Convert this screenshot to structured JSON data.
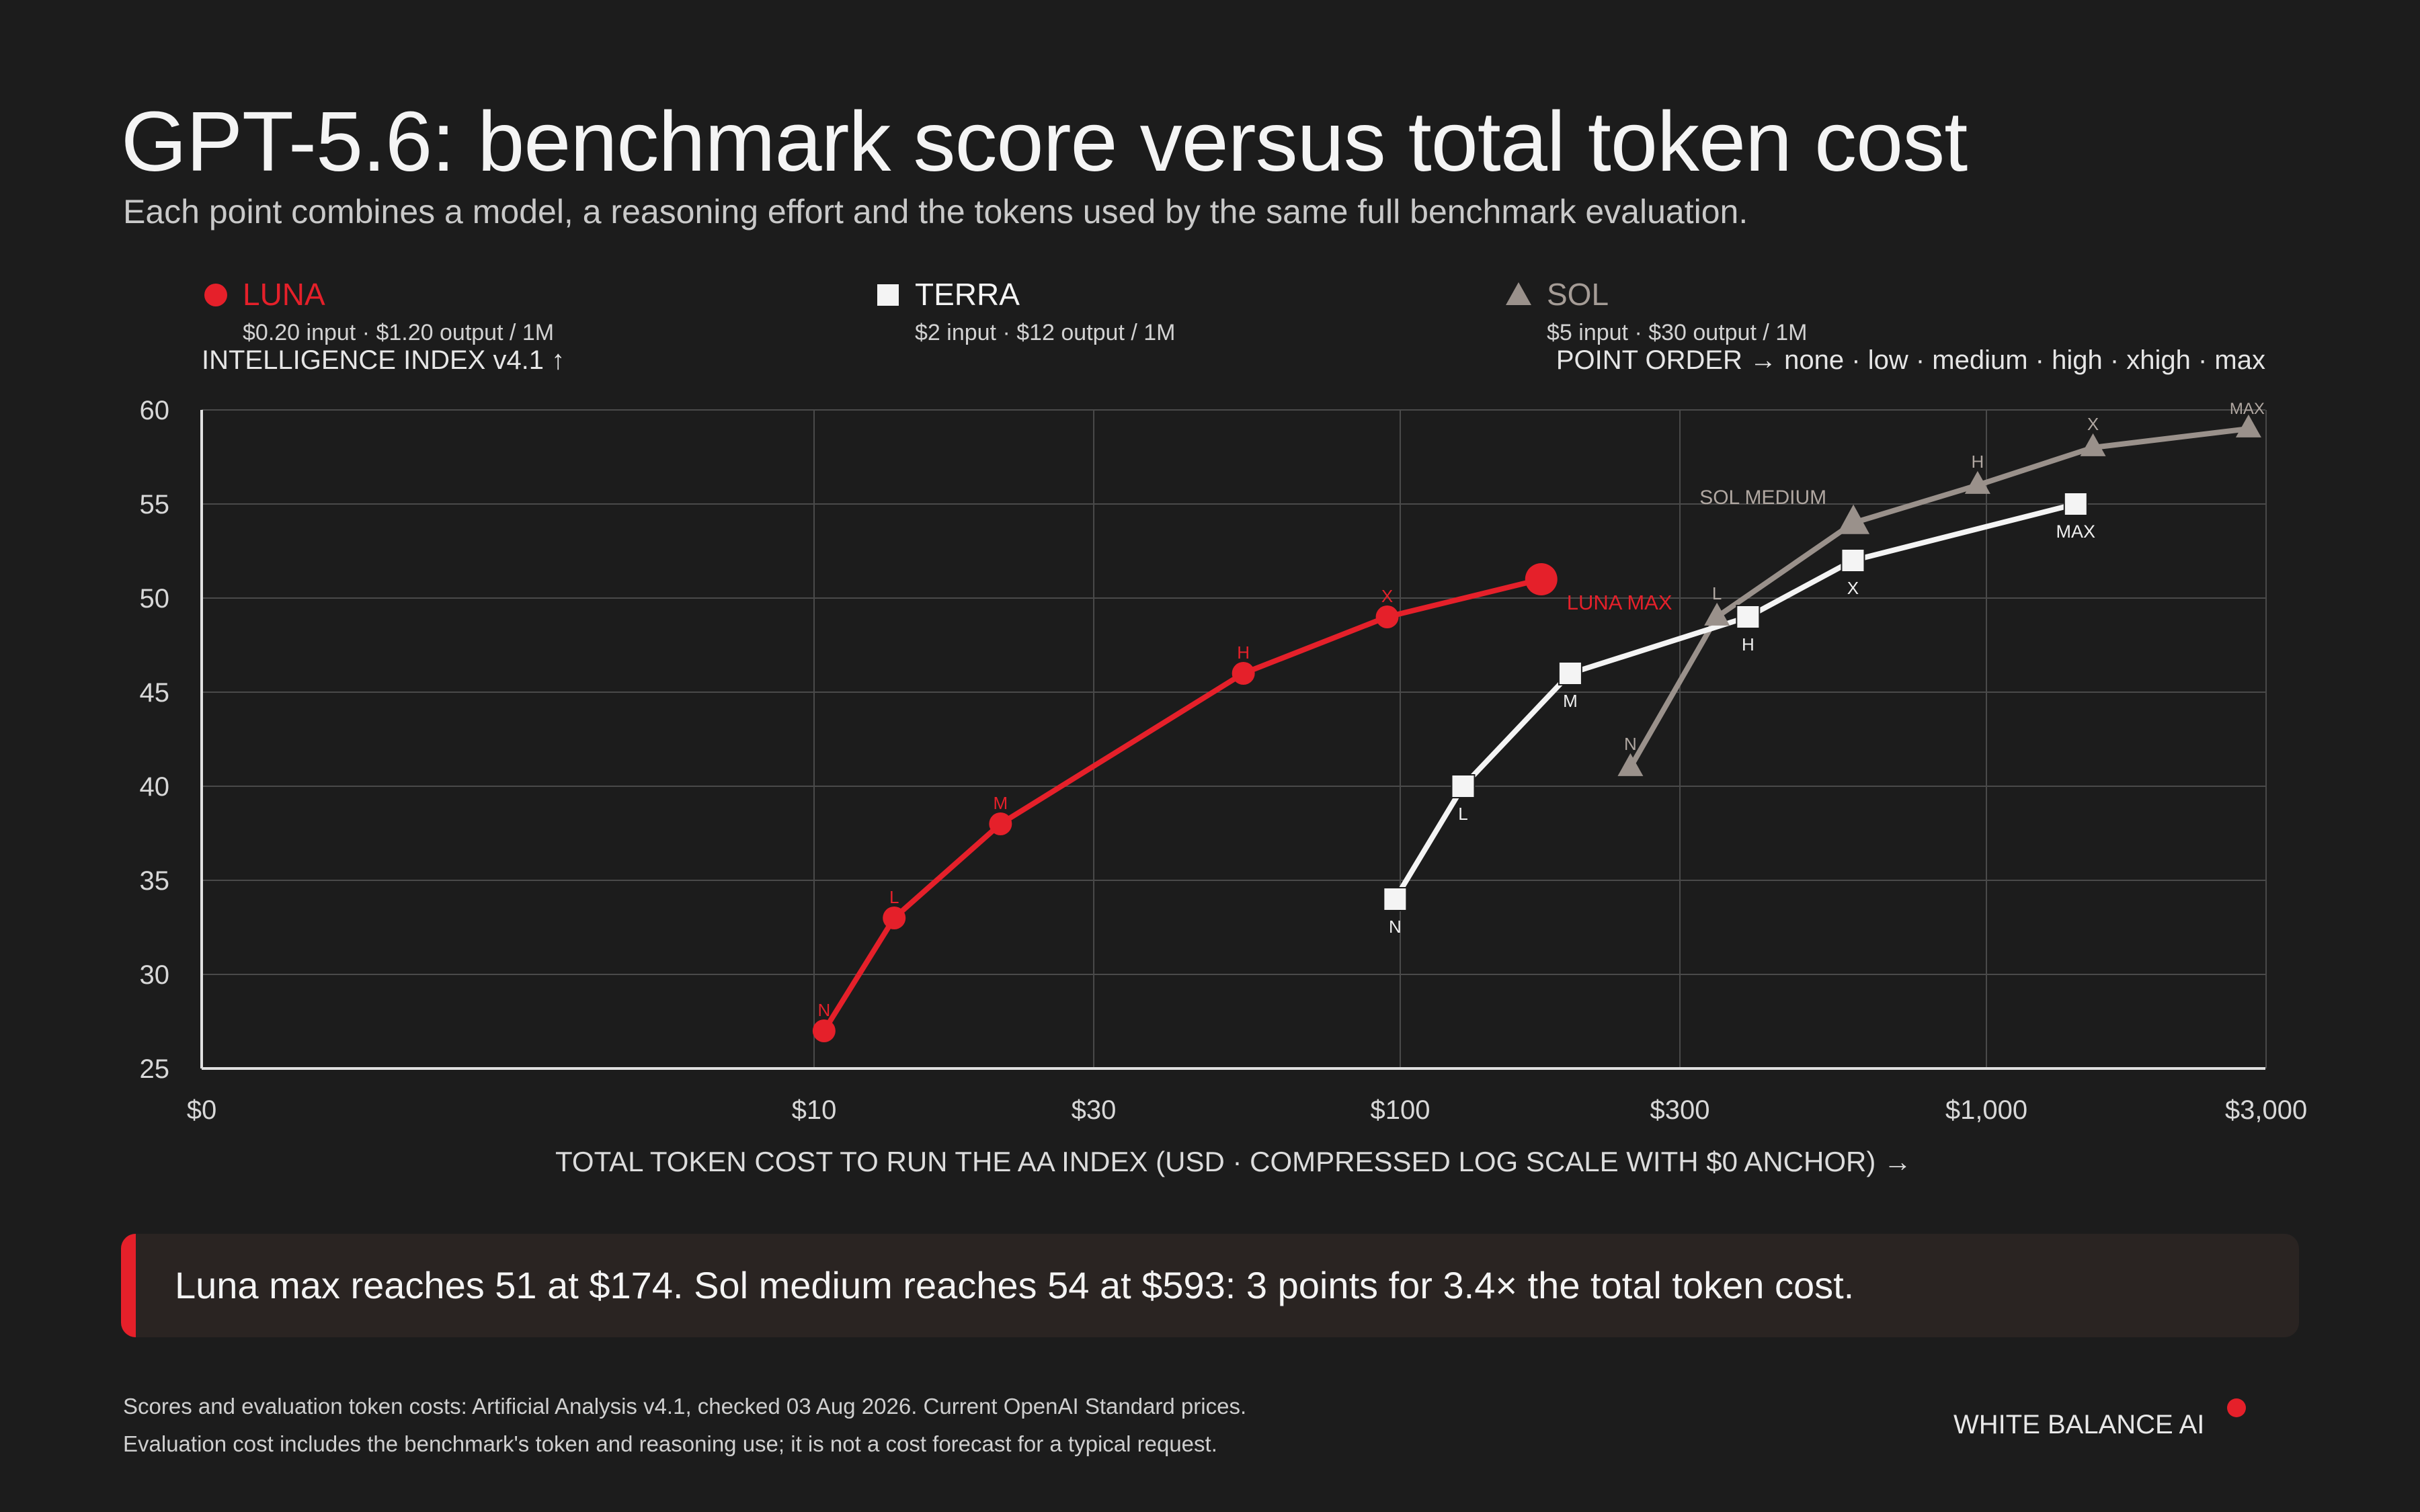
{
  "header": {
    "title": "GPT-5.6: benchmark score versus total token cost",
    "subtitle": "Each point combines a model, a reasoning effort and the tokens used by the same full benchmark evaluation."
  },
  "legend": [
    {
      "name": "LUNA",
      "price": "$0.20 input · $1.20 output / 1M",
      "marker": "circle",
      "color": "#e5202a"
    },
    {
      "name": "TERRA",
      "price": "$2 input · $12 output / 1M",
      "marker": "square",
      "color": "#f4f4f4"
    },
    {
      "name": "SOL",
      "price": "$5 input · $30 output / 1M",
      "marker": "triangle",
      "color": "#9a918b"
    }
  ],
  "axis_captions": {
    "y": "INTELLIGENCE INDEX v4.1 ↑",
    "order": "POINT ORDER → none · low · medium · high · xhigh · max"
  },
  "chart_data": {
    "type": "line",
    "title": "GPT-5.6: benchmark score versus total token cost",
    "subtitle": "Each point combines a model, a reasoning effort and the tokens used by the same full benchmark evaluation.",
    "xlabel": "TOTAL TOKEN COST TO RUN THE AA INDEX (USD · COMPRESSED LOG SCALE WITH $0 ANCHOR) →",
    "ylabel": "INTELLIGENCE INDEX v4.1 ↑",
    "x_scale": "log with $0 anchor",
    "xlim": [
      0,
      3000
    ],
    "ylim": [
      25,
      60
    ],
    "x_ticks": [
      {
        "value": 0,
        "label": "$0"
      },
      {
        "value": 10,
        "label": "$10"
      },
      {
        "value": 30,
        "label": "$30"
      },
      {
        "value": 100,
        "label": "$100"
      },
      {
        "value": 300,
        "label": "$300"
      },
      {
        "value": 1000,
        "label": "$1,000"
      },
      {
        "value": 3000,
        "label": "$3,000"
      }
    ],
    "y_ticks": [
      25,
      30,
      35,
      40,
      45,
      50,
      55,
      60
    ],
    "grid": true,
    "legend_position": "top",
    "series": [
      {
        "name": "LUNA",
        "color": "#e5202a",
        "marker": "circle",
        "points": [
          {
            "x": 10.4,
            "y": 27,
            "label": "N"
          },
          {
            "x": 13.7,
            "y": 33,
            "label": "L"
          },
          {
            "x": 20.8,
            "y": 38,
            "label": "M"
          },
          {
            "x": 54,
            "y": 46,
            "label": "H"
          },
          {
            "x": 95,
            "y": 49,
            "label": "X"
          },
          {
            "x": 174,
            "y": 51,
            "label": "LUNA MAX"
          }
        ]
      },
      {
        "name": "TERRA",
        "color": "#f4f4f4",
        "marker": "square",
        "points": [
          {
            "x": 98,
            "y": 34,
            "label": "N"
          },
          {
            "x": 128,
            "y": 40,
            "label": "L"
          },
          {
            "x": 195,
            "y": 46,
            "label": "M"
          },
          {
            "x": 392,
            "y": 49,
            "label": "H"
          },
          {
            "x": 592,
            "y": 52,
            "label": "X"
          },
          {
            "x": 1420,
            "y": 55,
            "label": "MAX"
          }
        ]
      },
      {
        "name": "SOL",
        "color": "#9a918b",
        "marker": "triangle",
        "points": [
          {
            "x": 247,
            "y": 41,
            "label": "N"
          },
          {
            "x": 347,
            "y": 49,
            "label": "L"
          },
          {
            "x": 593,
            "y": 54,
            "label": "SOL MEDIUM"
          },
          {
            "x": 966,
            "y": 56,
            "label": "H"
          },
          {
            "x": 1520,
            "y": 58,
            "label": "X"
          },
          {
            "x": 2800,
            "y": 59,
            "label": "MAX"
          }
        ]
      }
    ]
  },
  "callout": {
    "text": "Luna max reaches 51 at $174. Sol medium reaches 54 at $593: 3 points for 3.4× the total token cost."
  },
  "footer": {
    "source": "Scores and evaluation token costs: Artificial Analysis v4.1, checked 03 Aug 2026. Current OpenAI Standard prices.",
    "note": "Evaluation cost includes the benchmark's token and reasoning use; it is not a cost forecast for a typical request.",
    "brand": "WHITE BALANCE AI"
  },
  "colors": {
    "background": "#1c1c1c",
    "accent": "#e5202a",
    "grid": "#4a4a4a"
  }
}
